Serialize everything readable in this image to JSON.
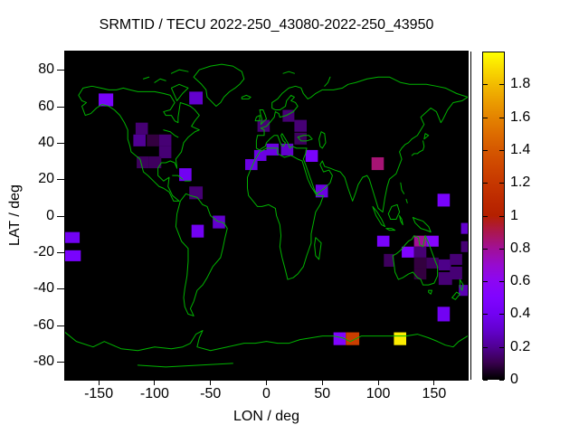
{
  "title": "SRMTID / TECU 2022-250_43080-2022-250_43950",
  "chart_data": {
    "type": "heatmap",
    "title": "SRMTID / TECU 2022-250_43080-2022-250_43950",
    "xlabel": "LON / deg",
    "ylabel": "LAT / deg",
    "xlim": [
      -180,
      180
    ],
    "ylim": [
      -90,
      90
    ],
    "x_ticks": [
      -150,
      -100,
      -50,
      0,
      50,
      100,
      150
    ],
    "x_tick_labels": [
      "-150",
      "-100",
      "-50",
      "0",
      "50",
      "100",
      "150"
    ],
    "y_ticks": [
      80,
      60,
      40,
      20,
      0,
      -20,
      -40,
      -60,
      -80
    ],
    "y_tick_labels": [
      "80",
      "60",
      "40",
      "20",
      "0",
      "-20",
      "-40",
      "-60",
      "-80"
    ],
    "grid": false,
    "plot_background": "#000000",
    "coastline_color": "#00b400",
    "colorbar": {
      "min": 0,
      "max": 2,
      "tick_values": [
        0,
        0.2,
        0.4,
        0.6,
        0.8,
        1,
        1.2,
        1.4,
        1.6,
        1.8
      ],
      "tick_labels": [
        "0",
        "0.2",
        "0.4",
        "0.6",
        "0.8",
        "1",
        "1.2",
        "1.4",
        "1.6",
        "1.8"
      ],
      "palette": "gnuplot default pm3d (black-violet-magenta-red-orange-yellow)"
    },
    "cells_format": [
      "lon_min",
      "lon_max",
      "lat_min",
      "lat_max",
      "tecu_value"
    ],
    "cells": [
      [
        -150,
        -137,
        60,
        67,
        0.45
      ],
      [
        -69,
        -57,
        61,
        68,
        0.3
      ],
      [
        -117,
        -106,
        44.5,
        51,
        0.15
      ],
      [
        -119,
        -108,
        38,
        44.5,
        0.2
      ],
      [
        -107,
        -96,
        38,
        44.5,
        0.08
      ],
      [
        -96,
        -85,
        38,
        44.5,
        0.15
      ],
      [
        -96,
        -85,
        31.5,
        38,
        0.15
      ],
      [
        -116,
        -105,
        26,
        32.5,
        0.12
      ],
      [
        -105,
        -94,
        26,
        32.5,
        0.12
      ],
      [
        -78,
        -67,
        19,
        26,
        0.4
      ],
      [
        -69,
        -57,
        9,
        16,
        0.15
      ],
      [
        -48,
        -37,
        -7,
        0,
        0.3
      ],
      [
        -67,
        -56,
        -12,
        -5,
        0.4
      ],
      [
        -180,
        -167,
        -15,
        -9,
        0.4
      ],
      [
        -180,
        -166,
        -25,
        -19,
        0.45
      ],
      [
        -19,
        -8,
        25,
        31,
        0.35
      ],
      [
        -11,
        0,
        30,
        36,
        0.35
      ],
      [
        0,
        11,
        33,
        39.5,
        0.35
      ],
      [
        13,
        24,
        33,
        39.5,
        0.3
      ],
      [
        -8,
        3,
        46,
        52.5,
        0.15
      ],
      [
        14.5,
        25,
        51.5,
        58,
        0.15
      ],
      [
        25,
        36,
        46,
        52.5,
        0.15
      ],
      [
        25,
        36,
        39,
        45.5,
        0.12
      ],
      [
        35,
        46,
        29.5,
        36,
        0.45
      ],
      [
        44,
        55,
        10,
        17,
        0.35
      ],
      [
        94,
        105,
        25,
        32,
        0.85
      ],
      [
        153,
        164,
        5,
        12,
        0.45
      ],
      [
        99,
        110,
        -17,
        -11,
        0.45
      ],
      [
        132,
        143,
        -17,
        -11,
        0.8
      ],
      [
        143,
        154,
        -17,
        -11,
        0.55
      ],
      [
        121,
        132,
        -23,
        -17,
        0.5
      ],
      [
        132,
        143,
        -23,
        -17,
        0.15
      ],
      [
        105,
        114,
        -28,
        -21,
        0.12
      ],
      [
        132,
        143,
        -29,
        -23,
        0.08
      ],
      [
        143,
        154,
        -29,
        -23,
        0.12
      ],
      [
        154,
        165,
        -30,
        -24,
        0.18
      ],
      [
        164,
        175,
        -27,
        -21,
        0.15
      ],
      [
        164,
        175,
        -35,
        -28,
        0.15
      ],
      [
        132,
        143,
        -35,
        -29,
        0.08
      ],
      [
        154,
        166,
        -38,
        -31,
        0.15
      ],
      [
        174,
        180,
        -10,
        -4,
        0.3
      ],
      [
        174,
        180,
        -20,
        -14,
        0.15
      ],
      [
        172,
        180,
        -44,
        -38,
        0.25
      ],
      [
        153,
        164,
        -58,
        -50,
        0.4
      ],
      [
        60,
        71,
        -71,
        -64,
        0.5
      ],
      [
        71,
        83,
        -71,
        -64,
        1.25
      ],
      [
        114,
        125,
        -71,
        -64,
        1.95
      ]
    ]
  }
}
